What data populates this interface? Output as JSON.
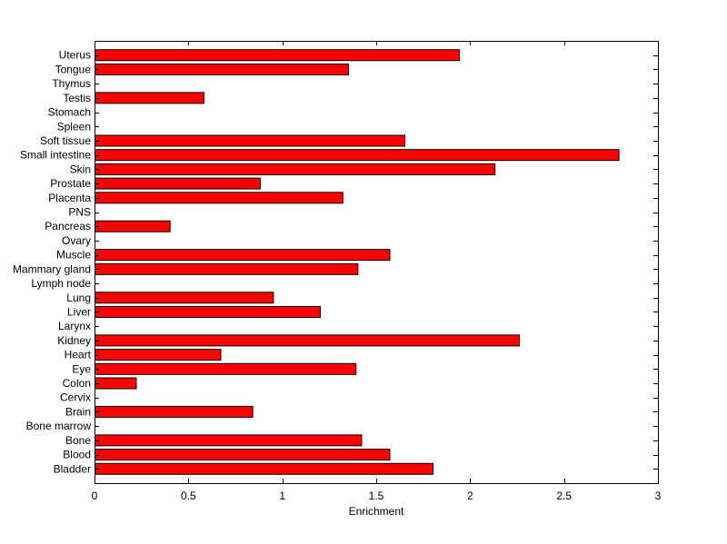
{
  "chart_data": {
    "type": "bar",
    "orientation": "horizontal",
    "categories": [
      "Bladder",
      "Blood",
      "Bone",
      "Bone marrow",
      "Brain",
      "Cervix",
      "Colon",
      "Eye",
      "Heart",
      "Kidney",
      "Larynx",
      "Liver",
      "Lung",
      "Lymph node",
      "Mammary gland",
      "Muscle",
      "Ovary",
      "Pancreas",
      "PNS",
      "Placenta",
      "Prostate",
      "Skin",
      "Small intestine",
      "Soft tissue",
      "Spleen",
      "Stomach",
      "Testis",
      "Thymus",
      "Tongue",
      "Uterus"
    ],
    "values": [
      1.8,
      1.57,
      1.42,
      0,
      0.84,
      0,
      0.22,
      1.39,
      0.67,
      2.26,
      0,
      1.2,
      0.95,
      0,
      1.4,
      1.57,
      0,
      0.4,
      0,
      1.32,
      0.88,
      2.13,
      2.79,
      1.65,
      0,
      0,
      0.58,
      0,
      1.35,
      1.94
    ],
    "xlabel": "Enrichment",
    "xlim": [
      0,
      3
    ],
    "xticks": [
      "0",
      "0.5",
      "1",
      "1.5",
      "2",
      "2.5",
      "3"
    ],
    "bar_color": "#ff0000",
    "grid": false
  }
}
